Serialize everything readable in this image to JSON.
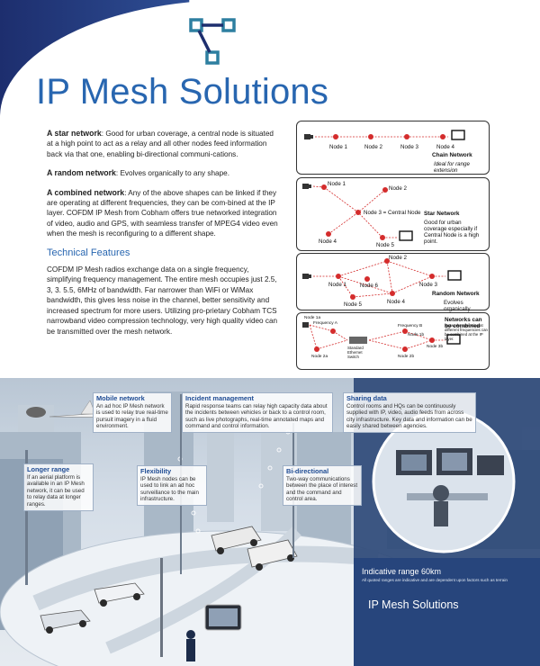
{
  "title": "IP Mesh Solutions",
  "paragraphs": [
    {
      "lead": "A star network",
      "text": ": Good for urban coverage, a central node is situated at a high point to act as a relay and all other nodes feed information back via that one, enabling bi-directional communi-cations."
    },
    {
      "lead": "A random network",
      "text": ": Evolves organically to any shape."
    },
    {
      "lead": "A combined network",
      "text": ": Any of the above shapes can be linked if they are operating at different frequencies, they can be com-bined at the IP layer. COFDM IP Mesh from Cobham offers true networked integration of video, audio and GPS, with seamless transfer of MPEG4 video even when the mesh is reconfiguring to a different shape."
    }
  ],
  "technical": {
    "heading": "Technical Features",
    "text": "COFDM IP Mesh radios exchange data on a single frequency, simplifying frequency management. The entire mesh occupies just 2.5, 3, 3. 5.5, 6MHz of bandwidth. Far narrower than WiFi or WiMax bandwidth, this gives less noise in the channel, better sensitivity and increased spectrum for more users. Utilizing pro-prietary Cobham TCS narrowband video compression technology, very high quality video can be transmitted over the mesh network."
  },
  "diagrams": {
    "chain": {
      "title": "Chain Network",
      "note": "Ideal for range extension",
      "nodes": [
        "Node 1",
        "Node 2",
        "Node 3",
        "Node 4"
      ]
    },
    "star": {
      "title": "Star Network",
      "note": "Good for urban coverage especially if Central Node is a high point.",
      "nodes": [
        "Node 1",
        "Node 2",
        "Node 3 = Central Node",
        "Node 4",
        "Node 5"
      ]
    },
    "random": {
      "title": "Random Network",
      "note": "Evolves organically",
      "nodes": [
        "Node 1",
        "Node 2",
        "Node 3",
        "Node 4",
        "Node 5",
        "Node 6"
      ]
    },
    "combined": {
      "title": "Networks can be combined",
      "note": "Networks operating at different frequencies can be combined at the IP layer.",
      "labels": [
        "Node 1a",
        "Frequency A",
        "Frequency B",
        "Node 1b",
        "Standard Ethernet Switch",
        "Node 2a",
        "Node 2b",
        "Node 3b"
      ]
    }
  },
  "callouts": {
    "mobile": {
      "title": "Mobile network",
      "text": "An ad hoc IP Mesh network is used to relay true real-time pursuit imagery in a fluid environment."
    },
    "incident": {
      "title": "Incident management",
      "text": "Rapid response teams can relay high capacity data about the incidents between vehicles or back to a control room, such as live photographs, real-time annotated maps and command and control information."
    },
    "sharing": {
      "title": "Sharing data",
      "text": "Control rooms and HQs can be continuously supplied with IP, video, audio feeds from across city infrastructure. Key data and information can be easily shared between agencies."
    },
    "longer": {
      "title": "Longer range",
      "text": "If an aerial platform is available in an IP Mesh network, it can be used to relay data at longer ranges."
    },
    "flex": {
      "title": "Flexibility",
      "text": "IP Mesh nodes can be used to link an ad hoc surveillance to the main infrastructure."
    },
    "bidir": {
      "title": "Bi-directional",
      "text": "Two-way communications between the place of interest and the command and control area."
    }
  },
  "range": {
    "title": "Indicative range 60km",
    "note": "All quoted ranges are indicative and are dependent upon factors such as terrain"
  },
  "footer_title": "IP Mesh Solutions",
  "colors": {
    "brand_blue": "#2866b0",
    "dark_blue": "#1d2e6e",
    "node_red": "#d42c2c"
  }
}
